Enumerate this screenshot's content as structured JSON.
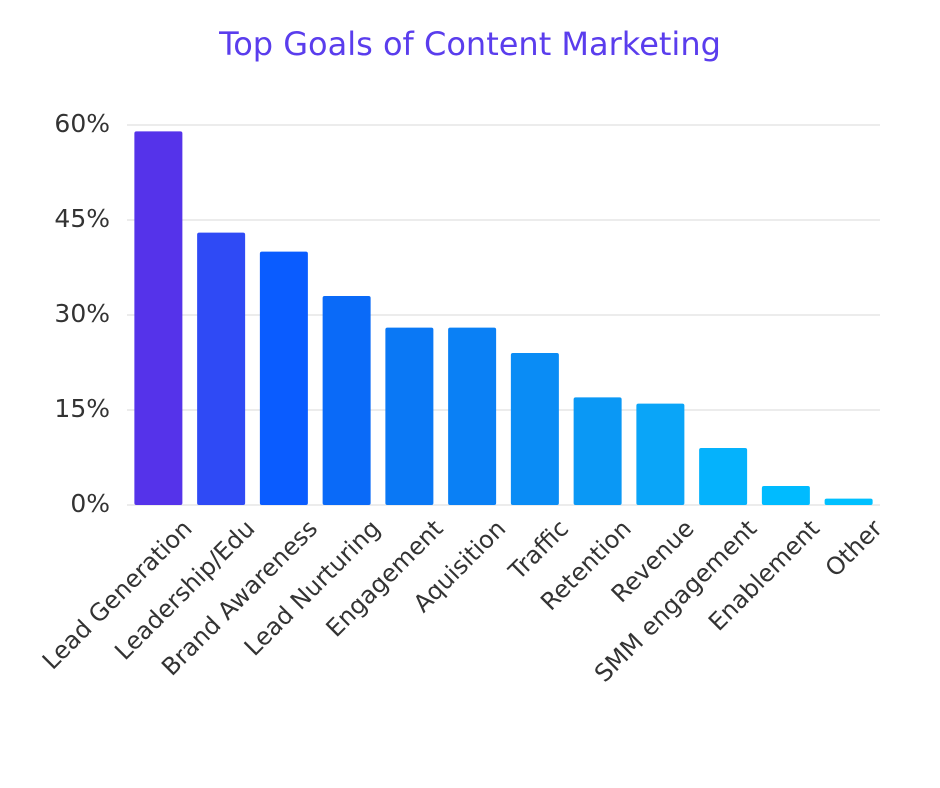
{
  "chart_data": {
    "type": "bar",
    "title": "Top Goals of Content Marketing",
    "categories": [
      "Lead Generation",
      "Leadership/Edu",
      "Brand Awareness",
      "Lead Nurturing",
      "Engagement",
      "Aquisition",
      "Traffic",
      "Retention",
      "Revenue",
      "SMM engagement",
      "Enablement",
      "Other"
    ],
    "values": [
      59,
      43,
      40,
      33,
      28,
      28,
      24,
      17,
      16,
      9,
      3,
      1
    ],
    "colors": [
      "#5533ea",
      "#2f4af5",
      "#0a5cff",
      "#0a6af8",
      "#0a78f5",
      "#0a80f5",
      "#0a8cf5",
      "#0a98f5",
      "#0aa5f8",
      "#05b2fc",
      "#00bbff",
      "#00c0ff"
    ],
    "ylim": [
      0,
      60
    ],
    "yticks": [
      {
        "value": 0,
        "label": "0%"
      },
      {
        "value": 15,
        "label": "15%"
      },
      {
        "value": 30,
        "label": "30%"
      },
      {
        "value": 45,
        "label": "45%"
      },
      {
        "value": 60,
        "label": "60%"
      }
    ],
    "grid": true
  }
}
